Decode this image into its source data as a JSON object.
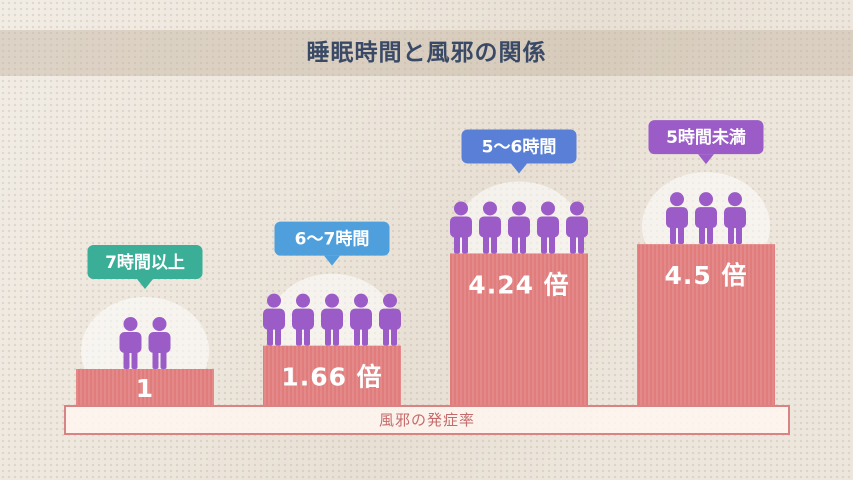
{
  "title": "睡眠時間と風邪の関係",
  "baseline_label": "風邪の発症率",
  "colors": {
    "bar": "#e07c7c",
    "person": "#9b5cc8",
    "text_dark": "#3a4a66"
  },
  "chart_data": {
    "type": "bar",
    "categories": [
      "7時間以上",
      "6〜7時間",
      "5〜6時間",
      "5時間未満"
    ],
    "values": [
      1,
      1.66,
      4.24,
      4.5
    ],
    "value_labels": [
      "1",
      "1.66",
      "4.24",
      "4.5"
    ],
    "value_suffix": "倍",
    "category_colors": [
      "#3aae96",
      "#4e9fdb",
      "#5a7fd6",
      "#9b5cc8"
    ],
    "people_counts": [
      2,
      5,
      5,
      3
    ],
    "ylabel": "風邪の発症率"
  }
}
